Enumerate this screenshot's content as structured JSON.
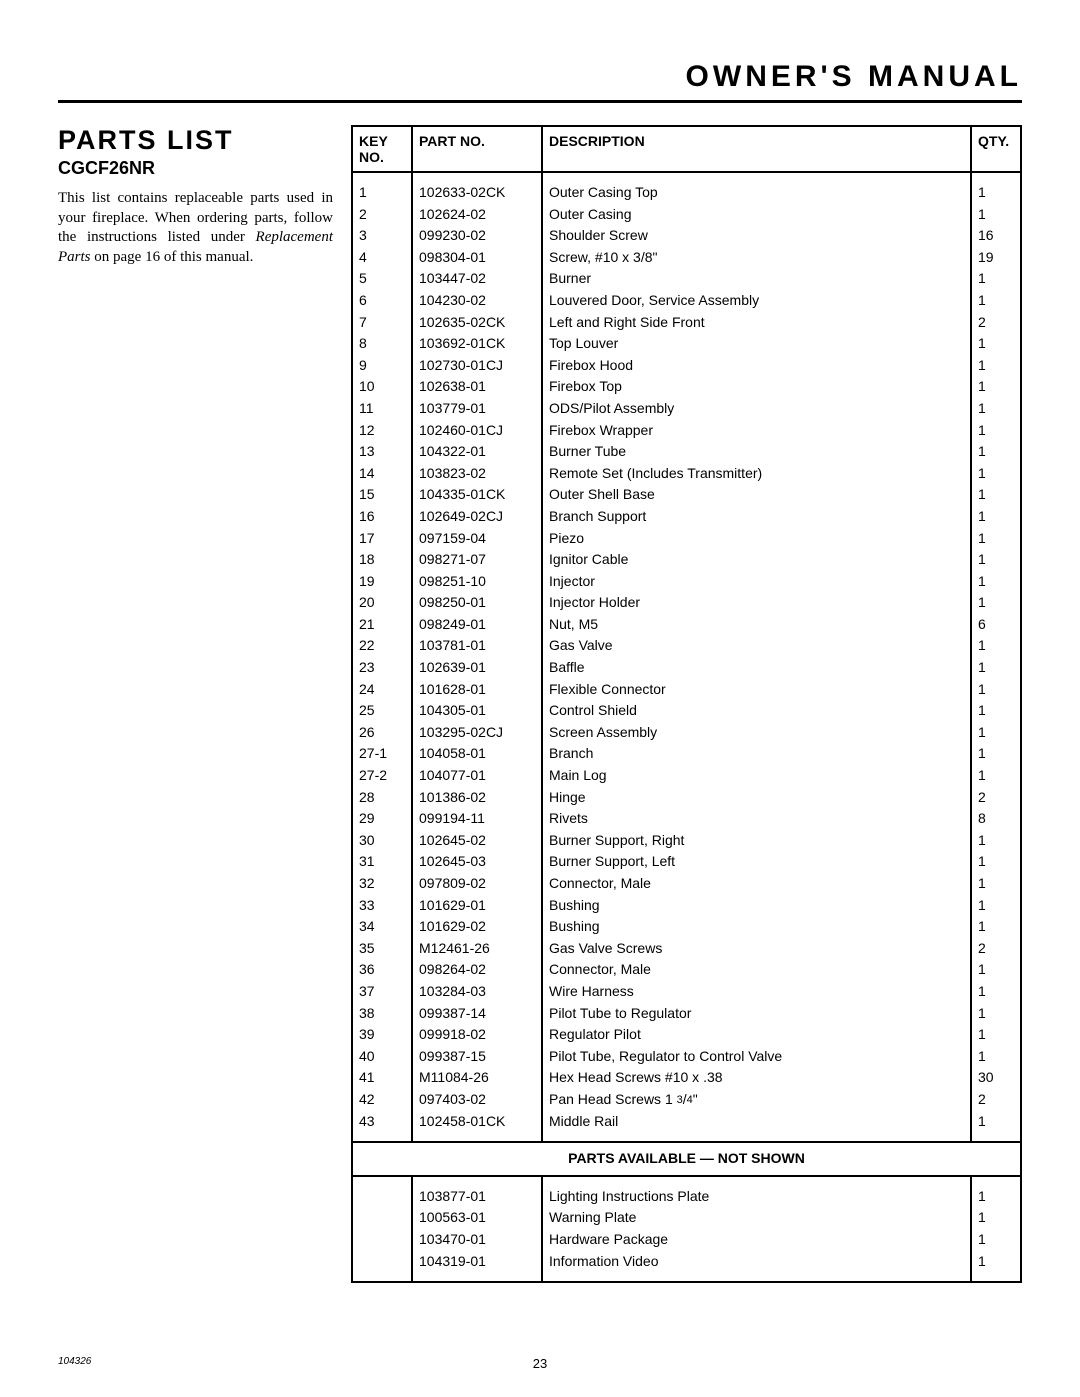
{
  "header": {
    "title": "OWNER'S MANUAL"
  },
  "left": {
    "section_title": "PARTS LIST",
    "model": "CGCF26NR",
    "intro_before": "This list contains replaceable parts used in your fireplace. When ordering parts, follow the instructions listed under ",
    "intro_italic": "Replacement Parts",
    "intro_after": " on page 16 of this manual."
  },
  "table": {
    "headers": {
      "key": "KEY NO.",
      "part": "PART NO.",
      "desc": "DESCRIPTION",
      "qty": "QTY."
    },
    "rows": [
      {
        "key": "1",
        "part": "102633-02CK",
        "desc": "Outer Casing Top",
        "qty": "1"
      },
      {
        "key": "2",
        "part": "102624-02",
        "desc": "Outer Casing",
        "qty": "1"
      },
      {
        "key": "3",
        "part": "099230-02",
        "desc": "Shoulder Screw",
        "qty": "16"
      },
      {
        "key": "4",
        "part": "098304-01",
        "desc": "Screw, #10 x 3/8\"",
        "qty": "19"
      },
      {
        "key": "5",
        "part": "103447-02",
        "desc": "Burner",
        "qty": "1"
      },
      {
        "key": "6",
        "part": "104230-02",
        "desc": "Louvered Door, Service Assembly",
        "qty": "1"
      },
      {
        "key": "7",
        "part": "102635-02CK",
        "desc": "Left and Right Side Front",
        "qty": "2"
      },
      {
        "key": "8",
        "part": "103692-01CK",
        "desc": "Top Louver",
        "qty": "1"
      },
      {
        "key": "9",
        "part": "102730-01CJ",
        "desc": "Firebox Hood",
        "qty": "1"
      },
      {
        "key": "10",
        "part": "102638-01",
        "desc": "Firebox Top",
        "qty": "1"
      },
      {
        "key": "11",
        "part": "103779-01",
        "desc": "ODS/Pilot Assembly",
        "qty": "1"
      },
      {
        "key": "12",
        "part": "102460-01CJ",
        "desc": "Firebox Wrapper",
        "qty": "1"
      },
      {
        "key": "13",
        "part": "104322-01",
        "desc": "Burner Tube",
        "qty": "1"
      },
      {
        "key": "14",
        "part": "103823-02",
        "desc": "Remote Set (Includes Transmitter)",
        "qty": "1"
      },
      {
        "key": "15",
        "part": "104335-01CK",
        "desc": "Outer Shell Base",
        "qty": "1"
      },
      {
        "key": "16",
        "part": "102649-02CJ",
        "desc": "Branch Support",
        "qty": "1"
      },
      {
        "key": "17",
        "part": "097159-04",
        "desc": "Piezo",
        "qty": "1"
      },
      {
        "key": "18",
        "part": "098271-07",
        "desc": "Ignitor Cable",
        "qty": "1"
      },
      {
        "key": "19",
        "part": "098251-10",
        "desc": "Injector",
        "qty": "1"
      },
      {
        "key": "20",
        "part": "098250-01",
        "desc": "Injector Holder",
        "qty": "1"
      },
      {
        "key": "21",
        "part": "098249-01",
        "desc": "Nut, M5",
        "qty": "6"
      },
      {
        "key": "22",
        "part": "103781-01",
        "desc": "Gas Valve",
        "qty": "1"
      },
      {
        "key": "23",
        "part": "102639-01",
        "desc": "Baffle",
        "qty": "1"
      },
      {
        "key": "24",
        "part": "101628-01",
        "desc": "Flexible Connector",
        "qty": "1"
      },
      {
        "key": "25",
        "part": "104305-01",
        "desc": "Control Shield",
        "qty": "1"
      },
      {
        "key": "26",
        "part": "103295-02CJ",
        "desc": "Screen Assembly",
        "qty": "1"
      },
      {
        "key": "27-1",
        "part": "104058-01",
        "desc": "Branch",
        "qty": "1"
      },
      {
        "key": "27-2",
        "part": "104077-01",
        "desc": "Main Log",
        "qty": "1"
      },
      {
        "key": "28",
        "part": "101386-02",
        "desc": "Hinge",
        "qty": "2"
      },
      {
        "key": "29",
        "part": "099194-11",
        "desc": "Rivets",
        "qty": "8"
      },
      {
        "key": "30",
        "part": "102645-02",
        "desc": "Burner Support, Right",
        "qty": "1"
      },
      {
        "key": "31",
        "part": "102645-03",
        "desc": "Burner Support, Left",
        "qty": "1"
      },
      {
        "key": "32",
        "part": "097809-02",
        "desc": "Connector, Male",
        "qty": "1"
      },
      {
        "key": "33",
        "part": "101629-01",
        "desc": "Bushing",
        "qty": "1"
      },
      {
        "key": "34",
        "part": "101629-02",
        "desc": "Bushing",
        "qty": "1"
      },
      {
        "key": "35",
        "part": "M12461-26",
        "desc": "Gas Valve Screws",
        "qty": "2"
      },
      {
        "key": "36",
        "part": "098264-02",
        "desc": "Connector, Male",
        "qty": "1"
      },
      {
        "key": "37",
        "part": "103284-03",
        "desc": "Wire Harness",
        "qty": "1"
      },
      {
        "key": "38",
        "part": "099387-14",
        "desc": "Pilot Tube to Regulator",
        "qty": "1"
      },
      {
        "key": "39",
        "part": "099918-02",
        "desc": "Regulator Pilot",
        "qty": "1"
      },
      {
        "key": "40",
        "part": "099387-15",
        "desc": "Pilot Tube, Regulator to Control Valve",
        "qty": "1"
      },
      {
        "key": "41",
        "part": "M11084-26",
        "desc": "Hex Head Screws #10 x .38",
        "qty": "30"
      },
      {
        "key": "42",
        "part": "097403-02",
        "desc": "Pan Head Screws 1 3/4\"",
        "qty": "2",
        "frac": true
      },
      {
        "key": "43",
        "part": "102458-01CK",
        "desc": "Middle Rail",
        "qty": "1"
      }
    ],
    "section_label": "PARTS AVAILABLE — NOT SHOWN",
    "not_shown": [
      {
        "part": "103877-01",
        "desc": "Lighting Instructions Plate",
        "qty": "1"
      },
      {
        "part": "100563-01",
        "desc": "Warning Plate",
        "qty": "1"
      },
      {
        "part": "103470-01",
        "desc": "Hardware Package",
        "qty": "1"
      },
      {
        "part": "104319-01",
        "desc": "Information Video",
        "qty": "1"
      }
    ]
  },
  "footer": {
    "doc_id": "104326",
    "page": "23"
  }
}
